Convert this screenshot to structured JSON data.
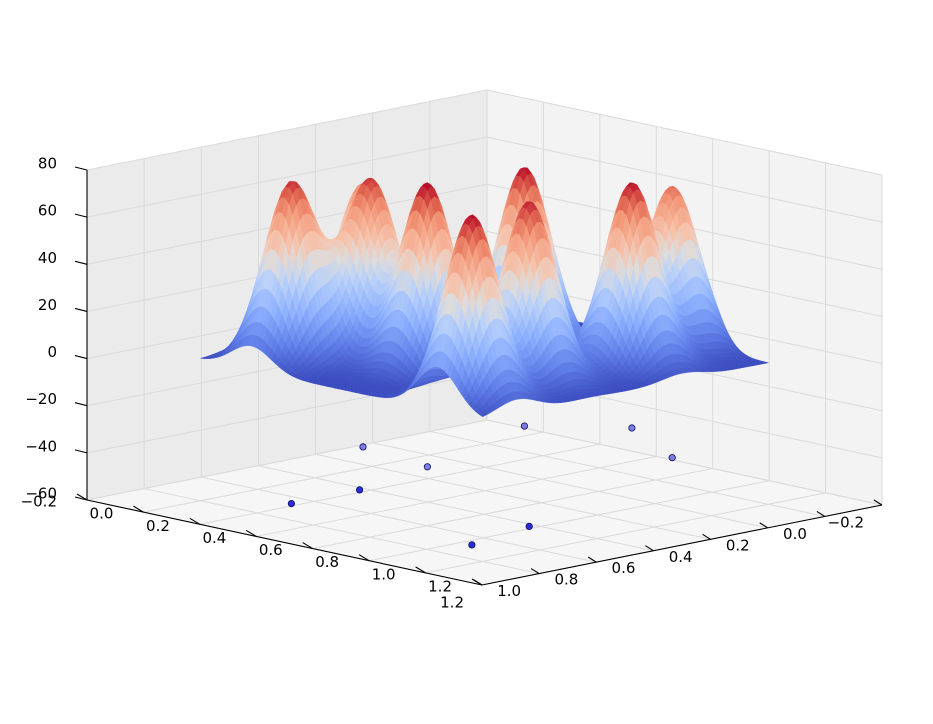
{
  "chart_data": {
    "type": "surface3d",
    "title": "",
    "xlabel": "",
    "ylabel": "",
    "zlabel": "",
    "x_ticks": [
      -0.2,
      0.0,
      0.2,
      0.4,
      0.6,
      0.8,
      1.0,
      1.2
    ],
    "y_ticks": [
      -0.2,
      0.0,
      0.2,
      0.4,
      0.6,
      0.8,
      1.0,
      1.2
    ],
    "z_ticks": [
      -60,
      -40,
      -20,
      0,
      20,
      40,
      60,
      80
    ],
    "x_tick_labels": [
      "−0.2",
      "0.0",
      "0.2",
      "0.4",
      "0.6",
      "0.8",
      "1.0",
      "1.2"
    ],
    "y_tick_labels": [
      "−0.2",
      "0.0",
      "0.2",
      "0.4",
      "0.6",
      "0.8",
      "1.0",
      "1.2"
    ],
    "z_tick_labels": [
      "−60",
      "−40",
      "−20",
      "0",
      "20",
      "40",
      "60",
      "80"
    ],
    "xlim": [
      -0.2,
      1.2
    ],
    "ylim": [
      -0.2,
      1.2
    ],
    "zlim": [
      -60,
      80
    ],
    "colormap": "coolwarm",
    "surface_domain": [
      0,
      1
    ],
    "peaks": [
      {
        "x": 0.18,
        "y": 0.86,
        "height": 76
      },
      {
        "x": 0.12,
        "y": 0.55,
        "height": 66
      },
      {
        "x": 0.28,
        "y": 0.68,
        "height": 74
      },
      {
        "x": 0.5,
        "y": 0.7,
        "height": 80
      },
      {
        "x": 0.52,
        "y": 0.38,
        "height": 80
      },
      {
        "x": 0.82,
        "y": 0.3,
        "height": 79
      },
      {
        "x": 0.78,
        "y": 0.62,
        "height": 78
      },
      {
        "x": 0.74,
        "y": 0.08,
        "height": 70
      },
      {
        "x": 0.84,
        "y": 0.88,
        "height": 80
      }
    ],
    "peak_width": 0.07,
    "scatter_points": [
      {
        "x": 0.28,
        "y": 0.72,
        "z": -55
      },
      {
        "x": 0.18,
        "y": 0.86,
        "z": -60
      },
      {
        "x": 0.12,
        "y": 0.55,
        "z": -45
      },
      {
        "x": 0.5,
        "y": 0.7,
        "z": -40
      },
      {
        "x": 0.52,
        "y": 0.38,
        "z": -30
      },
      {
        "x": 0.82,
        "y": 0.3,
        "z": -25
      },
      {
        "x": 0.78,
        "y": 0.62,
        "z": -60
      },
      {
        "x": 0.74,
        "y": 0.08,
        "z": -45
      },
      {
        "x": 0.84,
        "y": 0.88,
        "z": -60
      }
    ],
    "colors": {
      "pane_left": "#ebebeb",
      "pane_right": "#f3f3f3",
      "pane_floor": "#f6f6f6",
      "grid": "#dadada",
      "scatter": "#2b2bd6"
    }
  }
}
